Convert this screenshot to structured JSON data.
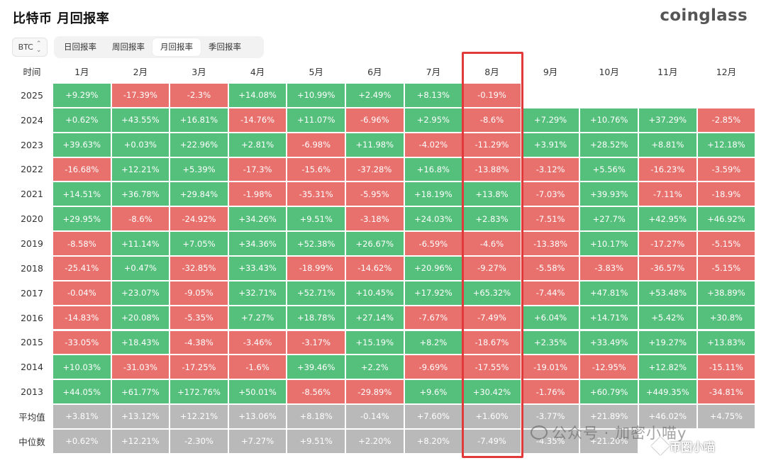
{
  "header": {
    "title": "比特币 月回报率",
    "logo": "coinglass"
  },
  "asset_select": {
    "value": "BTC",
    "icon": "sort-icon"
  },
  "tabs": [
    {
      "label": "日回报率",
      "active": false
    },
    {
      "label": "周回报率",
      "active": false
    },
    {
      "label": "月回报率",
      "active": true
    },
    {
      "label": "季回报率",
      "active": false
    }
  ],
  "colors": {
    "positive": "#55c07c",
    "negative": "#e8706d",
    "summary": "#b9b9b9",
    "highlight": "#e23a3a"
  },
  "table": {
    "corner": "时间",
    "months": [
      "1月",
      "2月",
      "3月",
      "4月",
      "5月",
      "6月",
      "7月",
      "8月",
      "9月",
      "10月",
      "11月",
      "12月"
    ],
    "rows": [
      {
        "label": "2025",
        "kind": "year",
        "values": [
          "+9.29%",
          "-17.39%",
          "-2.3%",
          "+14.08%",
          "+10.99%",
          "+2.49%",
          "+8.13%",
          "-0.19%",
          "",
          "",
          "",
          ""
        ]
      },
      {
        "label": "2024",
        "kind": "year",
        "values": [
          "+0.62%",
          "+43.55%",
          "+16.81%",
          "-14.76%",
          "+11.07%",
          "-6.96%",
          "+2.95%",
          "-8.6%",
          "+7.29%",
          "+10.76%",
          "+37.29%",
          "-2.85%"
        ]
      },
      {
        "label": "2023",
        "kind": "year",
        "values": [
          "+39.63%",
          "+0.03%",
          "+22.96%",
          "+2.81%",
          "-6.98%",
          "+11.98%",
          "-4.02%",
          "-11.29%",
          "+3.91%",
          "+28.52%",
          "+8.81%",
          "+12.18%"
        ]
      },
      {
        "label": "2022",
        "kind": "year",
        "values": [
          "-16.68%",
          "+12.21%",
          "+5.39%",
          "-17.3%",
          "-15.6%",
          "-37.28%",
          "+16.8%",
          "-13.88%",
          "-3.12%",
          "+5.56%",
          "-16.23%",
          "-3.59%"
        ]
      },
      {
        "label": "2021",
        "kind": "year",
        "values": [
          "+14.51%",
          "+36.78%",
          "+29.84%",
          "-1.98%",
          "-35.31%",
          "-5.95%",
          "+18.19%",
          "+13.8%",
          "-7.03%",
          "+39.93%",
          "-7.11%",
          "-18.9%"
        ]
      },
      {
        "label": "2020",
        "kind": "year",
        "values": [
          "+29.95%",
          "-8.6%",
          "-24.92%",
          "+34.26%",
          "+9.51%",
          "-3.18%",
          "+24.03%",
          "+2.83%",
          "-7.51%",
          "+27.7%",
          "+42.95%",
          "+46.92%"
        ]
      },
      {
        "label": "2019",
        "kind": "year",
        "values": [
          "-8.58%",
          "+11.14%",
          "+7.05%",
          "+34.36%",
          "+52.38%",
          "+26.67%",
          "-6.59%",
          "-4.6%",
          "-13.38%",
          "+10.17%",
          "-17.27%",
          "-5.15%"
        ]
      },
      {
        "label": "2018",
        "kind": "year",
        "values": [
          "-25.41%",
          "+0.47%",
          "-32.85%",
          "+33.43%",
          "-18.99%",
          "-14.62%",
          "+20.96%",
          "-9.27%",
          "-5.58%",
          "-3.83%",
          "-36.57%",
          "-5.15%"
        ]
      },
      {
        "label": "2017",
        "kind": "year",
        "values": [
          "-0.04%",
          "+23.07%",
          "-9.05%",
          "+32.71%",
          "+52.71%",
          "+10.45%",
          "+17.92%",
          "+65.32%",
          "-7.44%",
          "+47.81%",
          "+53.48%",
          "+38.89%"
        ]
      },
      {
        "label": "2016",
        "kind": "year",
        "values": [
          "-14.83%",
          "+20.08%",
          "-5.35%",
          "+7.27%",
          "+18.78%",
          "+27.14%",
          "-7.67%",
          "-7.49%",
          "+6.04%",
          "+14.71%",
          "+5.42%",
          "+30.8%"
        ]
      },
      {
        "label": "2015",
        "kind": "year",
        "values": [
          "-33.05%",
          "+18.43%",
          "-4.38%",
          "-3.46%",
          "-3.17%",
          "+15.19%",
          "+8.2%",
          "-18.67%",
          "+2.35%",
          "+33.49%",
          "+19.27%",
          "+13.83%"
        ]
      },
      {
        "label": "2014",
        "kind": "year",
        "values": [
          "+10.03%",
          "-31.03%",
          "-17.25%",
          "-1.6%",
          "+39.46%",
          "+2.2%",
          "-9.69%",
          "-17.55%",
          "-19.01%",
          "-12.95%",
          "+12.82%",
          "-15.11%"
        ]
      },
      {
        "label": "2013",
        "kind": "year",
        "values": [
          "+44.05%",
          "+61.77%",
          "+172.76%",
          "+50.01%",
          "-8.56%",
          "-29.89%",
          "+9.6%",
          "+30.42%",
          "-1.76%",
          "+60.79%",
          "+449.35%",
          "-34.81%"
        ]
      },
      {
        "label": "平均值",
        "kind": "summary",
        "values": [
          "+3.81%",
          "+13.12%",
          "+12.21%",
          "+13.06%",
          "+8.18%",
          "-0.14%",
          "+7.60%",
          "+1.60%",
          "-3.77%",
          "+21.89%",
          "+46.02%",
          "+4.75%"
        ]
      },
      {
        "label": "中位数",
        "kind": "summary",
        "values": [
          "+0.62%",
          "+12.21%",
          "-2.30%",
          "+7.27%",
          "+9.51%",
          "+2.20%",
          "+8.20%",
          "-7.49%",
          "-4.35%",
          "+21.20%",
          "",
          ""
        ]
      }
    ]
  },
  "watermarks": {
    "wechat": "公众号 · 加密小喵y",
    "weibo": "币圈小喵"
  }
}
